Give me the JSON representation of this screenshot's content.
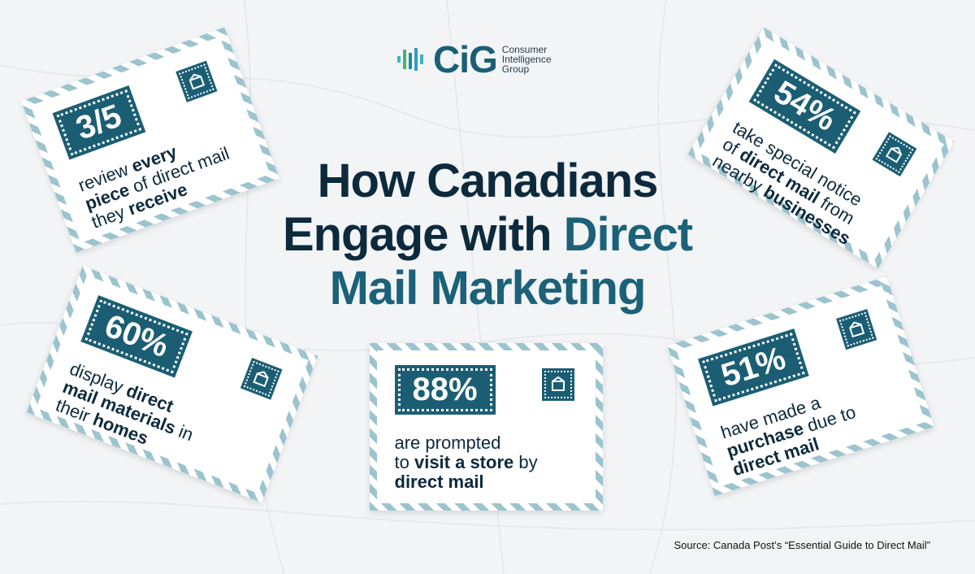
{
  "logo": {
    "mark": "CiG",
    "name_lines": [
      "Consumer",
      "Intelligence",
      "Group"
    ]
  },
  "title": {
    "line1": "How Canadians",
    "line2a": "Engage with",
    "line2b": "Direct",
    "line3": "Mail Marketing"
  },
  "cards": [
    {
      "stat": "3/5",
      "lines": [
        [
          {
            "text": "review "
          },
          {
            "text": "every",
            "bold": true
          }
        ],
        [
          {
            "text": "piece",
            "bold": true
          },
          {
            "text": " of direct mail"
          }
        ],
        [
          {
            "text": "they "
          },
          {
            "text": "receive",
            "bold": true
          }
        ]
      ]
    },
    {
      "stat": "54%",
      "lines": [
        [
          {
            "text": "take special notice"
          }
        ],
        [
          {
            "text": "of "
          },
          {
            "text": "direct mail",
            "bold": true
          },
          {
            "text": " from"
          }
        ],
        [
          {
            "text": "nearby "
          },
          {
            "text": "businesses",
            "bold": true
          }
        ]
      ]
    },
    {
      "stat": "60%",
      "lines": [
        [
          {
            "text": "display "
          },
          {
            "text": "direct",
            "bold": true
          }
        ],
        [
          {
            "text": "mail materials",
            "bold": true
          },
          {
            "text": " in"
          }
        ],
        [
          {
            "text": "their "
          },
          {
            "text": "homes",
            "bold": true
          }
        ]
      ]
    },
    {
      "stat": "88%",
      "lines": [
        [
          {
            "text": "are prompted"
          }
        ],
        [
          {
            "text": "to "
          },
          {
            "text": "visit a store",
            "bold": true
          },
          {
            "text": " by"
          }
        ],
        [
          {
            "text": "direct mail",
            "bold": true
          }
        ]
      ]
    },
    {
      "stat": "51%",
      "lines": [
        [
          {
            "text": "have made a"
          }
        ],
        [
          {
            "text": "purchase",
            "bold": true
          },
          {
            "text": " due to"
          }
        ],
        [
          {
            "text": "direct mail",
            "bold": true
          }
        ]
      ]
    }
  ],
  "source": "Source: Canada Post’s “Essential Guide to Direct Mail”"
}
